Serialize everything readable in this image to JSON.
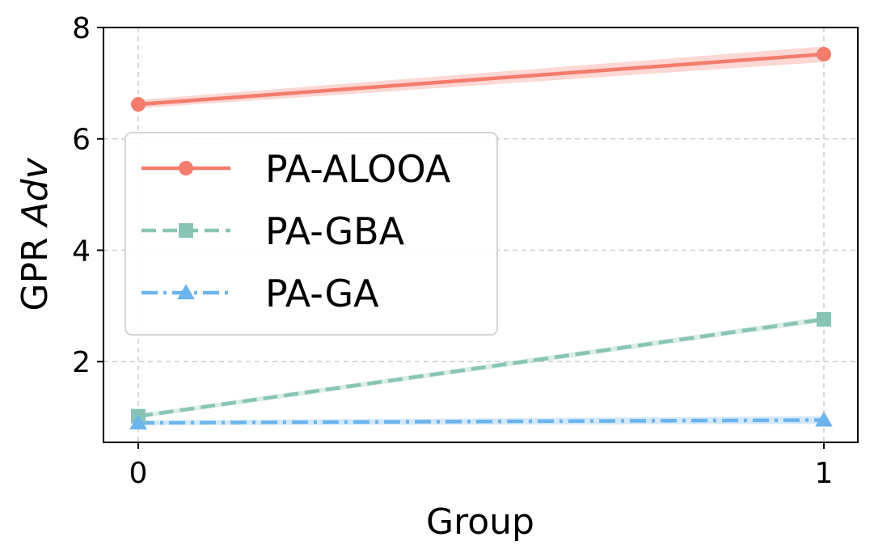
{
  "chart_data": {
    "type": "line",
    "title": "",
    "xlabel": "Group",
    "ylabel_prefix": "GPR",
    "ylabel_italic": "Adv",
    "x": [
      0,
      1
    ],
    "x_tick_labels": [
      "0",
      "1"
    ],
    "xlim": [
      -0.05,
      1.05
    ],
    "ylim": [
      0.55,
      8.0
    ],
    "y_ticks": [
      2,
      4,
      6,
      8
    ],
    "y_tick_labels": [
      "2",
      "4",
      "6",
      "8"
    ],
    "grid": true,
    "legend_position": "center-left",
    "series": [
      {
        "name": "PA-ALOOA",
        "values": [
          6.62,
          7.52
        ],
        "band": [
          [
            6.55,
            6.7
          ],
          [
            7.38,
            7.66
          ]
        ],
        "color": "#f47c6c",
        "dash": "solid",
        "marker": "circle"
      },
      {
        "name": "PA-GBA",
        "values": [
          1.02,
          2.76
        ],
        "band": [
          [
            0.98,
            1.06
          ],
          [
            2.71,
            2.81
          ]
        ],
        "color": "#88c4b4",
        "dash": "dashed",
        "marker": "square"
      },
      {
        "name": "PA-GA",
        "values": [
          0.9,
          0.95
        ],
        "band": [
          [
            0.86,
            0.94
          ],
          [
            0.88,
            1.02
          ]
        ],
        "color": "#6cb4ec",
        "dash": "dashdot",
        "marker": "triangle"
      }
    ]
  }
}
